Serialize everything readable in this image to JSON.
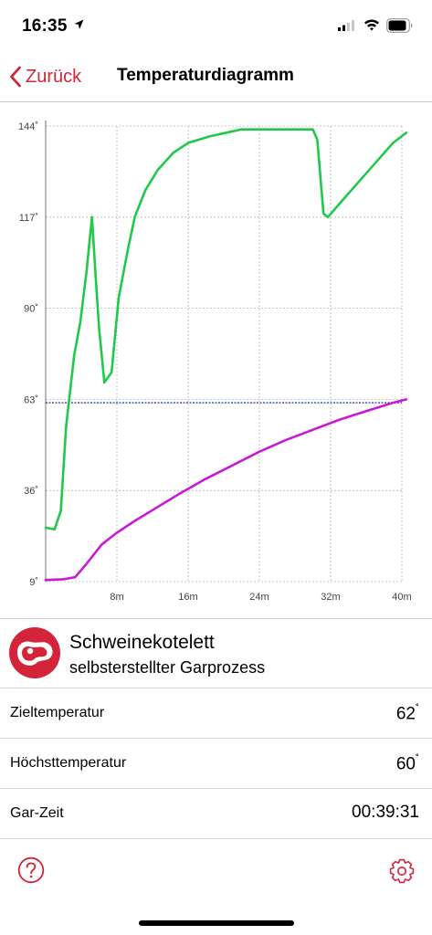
{
  "status_bar": {
    "time": "16:35"
  },
  "nav": {
    "back_label": "Zurück",
    "title": "Temperaturdiagramm"
  },
  "chart_data": {
    "type": "line",
    "x_unit": "minutes",
    "xlim": [
      0,
      40
    ],
    "ylim": [
      9,
      144
    ],
    "x_ticks": [
      8,
      16,
      24,
      32,
      40
    ],
    "x_tick_labels": [
      "8m",
      "16m",
      "24m",
      "32m",
      "40m"
    ],
    "y_ticks": [
      9,
      36,
      63,
      90,
      117,
      144
    ],
    "y_tick_labels": [
      "9˚",
      "36˚",
      "63˚",
      "90˚",
      "117˚",
      "144˚"
    ],
    "grid": true,
    "target_line": {
      "y": 62,
      "color": "#3347b5"
    },
    "series": [
      {
        "color": "#1fc94a",
        "points": [
          [
            0,
            25
          ],
          [
            1,
            24.5
          ],
          [
            1.7,
            30
          ],
          [
            2.3,
            55
          ],
          [
            3.2,
            76
          ],
          [
            3.9,
            86
          ],
          [
            4.6,
            101
          ],
          [
            5.2,
            117
          ],
          [
            5.6,
            100
          ],
          [
            6.0,
            84
          ],
          [
            6.6,
            68
          ],
          [
            7.4,
            71
          ],
          [
            8.2,
            93
          ],
          [
            9.2,
            107
          ],
          [
            10,
            117
          ],
          [
            11.2,
            125
          ],
          [
            12.6,
            131
          ],
          [
            14.3,
            136
          ],
          [
            16,
            139
          ],
          [
            18.5,
            141
          ],
          [
            22,
            143
          ],
          [
            26,
            143
          ],
          [
            30,
            143
          ],
          [
            30.5,
            140
          ],
          [
            31.2,
            118
          ],
          [
            31.7,
            117
          ],
          [
            33,
            121
          ],
          [
            35,
            127
          ],
          [
            37,
            133
          ],
          [
            39,
            139
          ],
          [
            40.5,
            142
          ]
        ]
      },
      {
        "color": "#c81ad4",
        "points": [
          [
            0,
            9.5
          ],
          [
            2,
            9.7
          ],
          [
            3.3,
            10.3
          ],
          [
            4.5,
            14
          ],
          [
            6.3,
            20
          ],
          [
            8,
            23.5
          ],
          [
            10,
            27
          ],
          [
            12.5,
            31
          ],
          [
            15,
            35
          ],
          [
            18,
            39.5
          ],
          [
            21,
            43.5
          ],
          [
            24,
            47.5
          ],
          [
            27,
            51
          ],
          [
            30,
            54
          ],
          [
            33,
            57
          ],
          [
            36,
            59.5
          ],
          [
            39,
            62
          ],
          [
            40.5,
            63
          ]
        ]
      }
    ]
  },
  "recipe": {
    "name": "Schweinekotelett",
    "process": "selbsterstellter Garprozess"
  },
  "rows": [
    {
      "label": "Zieltemperatur",
      "value": "62",
      "unit": "˚"
    },
    {
      "label": "Höchsttemperatur",
      "value": "60",
      "unit": "˚"
    },
    {
      "label": "Gar-Zeit",
      "value": "00:39:31",
      "unit": ""
    }
  ],
  "colors": {
    "accent": "#d3243a",
    "grid": "#b5b5b5"
  }
}
